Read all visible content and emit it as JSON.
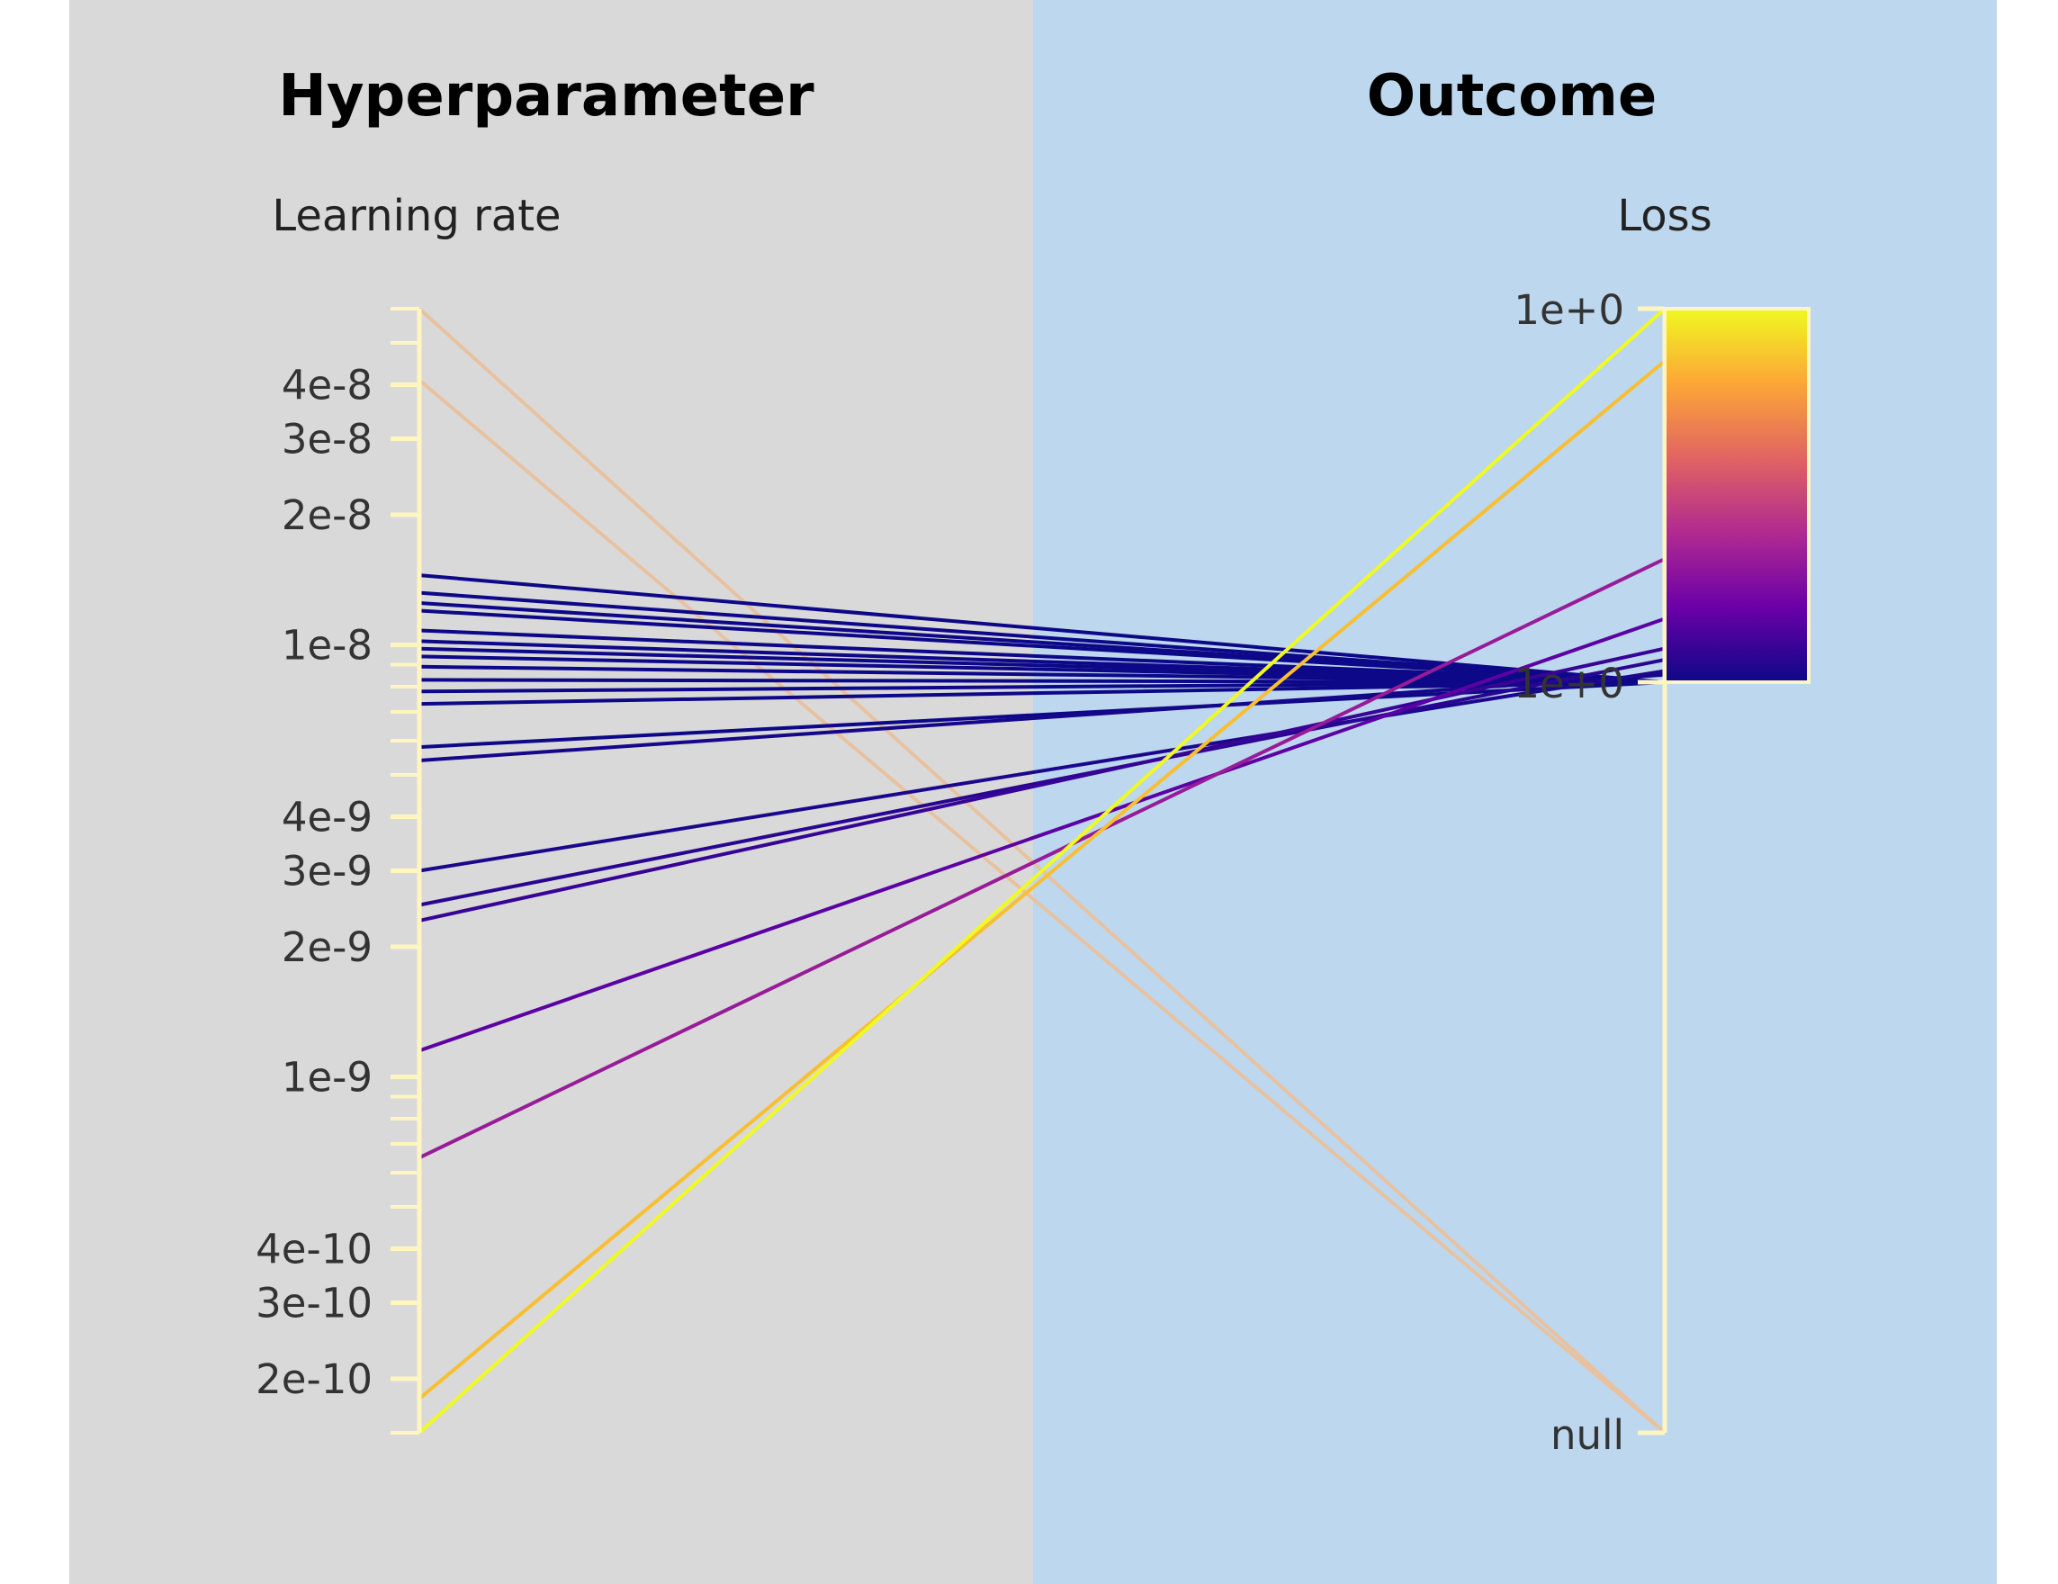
{
  "panels": {
    "left_title": "Hyperparameter",
    "right_title": "Outcome"
  },
  "colors": {
    "left_bg": "#d9d9d9",
    "right_bg": "#bdd7ee",
    "axis": "#fff6bf",
    "colormap": [
      "#0d0887",
      "#6a00a8",
      "#b12a90",
      "#e16462",
      "#fca636",
      "#f0f921"
    ],
    "null_line": "#e8c2a0"
  },
  "chart_data": {
    "type": "parallel_coordinates",
    "axes": [
      {
        "name": "Learning rate",
        "scale": "log",
        "range": [
          1.5e-10,
          6e-08
        ],
        "tick_labels": [
          "4e-8",
          "3e-8",
          "2e-8",
          "1e-8",
          "4e-9",
          "3e-9",
          "2e-9",
          "1e-9",
          "4e-10",
          "3e-10",
          "2e-10"
        ],
        "tick_values": [
          4e-08,
          3e-08,
          2e-08,
          1e-08,
          4e-09,
          3e-09,
          2e-09,
          1e-09,
          4e-10,
          3e-10,
          2e-10
        ]
      },
      {
        "name": "Loss",
        "tick_labels": [
          "1e+0",
          "1e+0",
          "null"
        ],
        "colorbar": true
      }
    ],
    "lines": [
      {
        "learning_rate": 6e-08,
        "loss": null
      },
      {
        "learning_rate": 4.1e-08,
        "loss": null
      },
      {
        "learning_rate": 1.45e-08,
        "loss": 0.0
      },
      {
        "learning_rate": 1.32e-08,
        "loss": 0.0
      },
      {
        "learning_rate": 1.25e-08,
        "loss": 0.0
      },
      {
        "learning_rate": 1.2e-08,
        "loss": 0.0
      },
      {
        "learning_rate": 1.08e-08,
        "loss": 0.0
      },
      {
        "learning_rate": 1.02e-08,
        "loss": 0.0
      },
      {
        "learning_rate": 9.8e-09,
        "loss": 0.0
      },
      {
        "learning_rate": 9.4e-09,
        "loss": 0.0
      },
      {
        "learning_rate": 8.9e-09,
        "loss": 0.0
      },
      {
        "learning_rate": 8.3e-09,
        "loss": 0.0
      },
      {
        "learning_rate": 7.8e-09,
        "loss": 0.0
      },
      {
        "learning_rate": 7.3e-09,
        "loss": 0.0
      },
      {
        "learning_rate": 5.8e-09,
        "loss": 0.0
      },
      {
        "learning_rate": 5.4e-09,
        "loss": 0.02
      },
      {
        "learning_rate": 3e-09,
        "loss": 0.03
      },
      {
        "learning_rate": 2.5e-09,
        "loss": 0.06
      },
      {
        "learning_rate": 2.3e-09,
        "loss": 0.09
      },
      {
        "learning_rate": 1.15e-09,
        "loss": 0.17
      },
      {
        "learning_rate": 6.5e-10,
        "loss": 0.33
      },
      {
        "learning_rate": 1.8e-10,
        "loss": 0.86
      },
      {
        "learning_rate": 1.5e-10,
        "loss": 1.0
      }
    ]
  }
}
